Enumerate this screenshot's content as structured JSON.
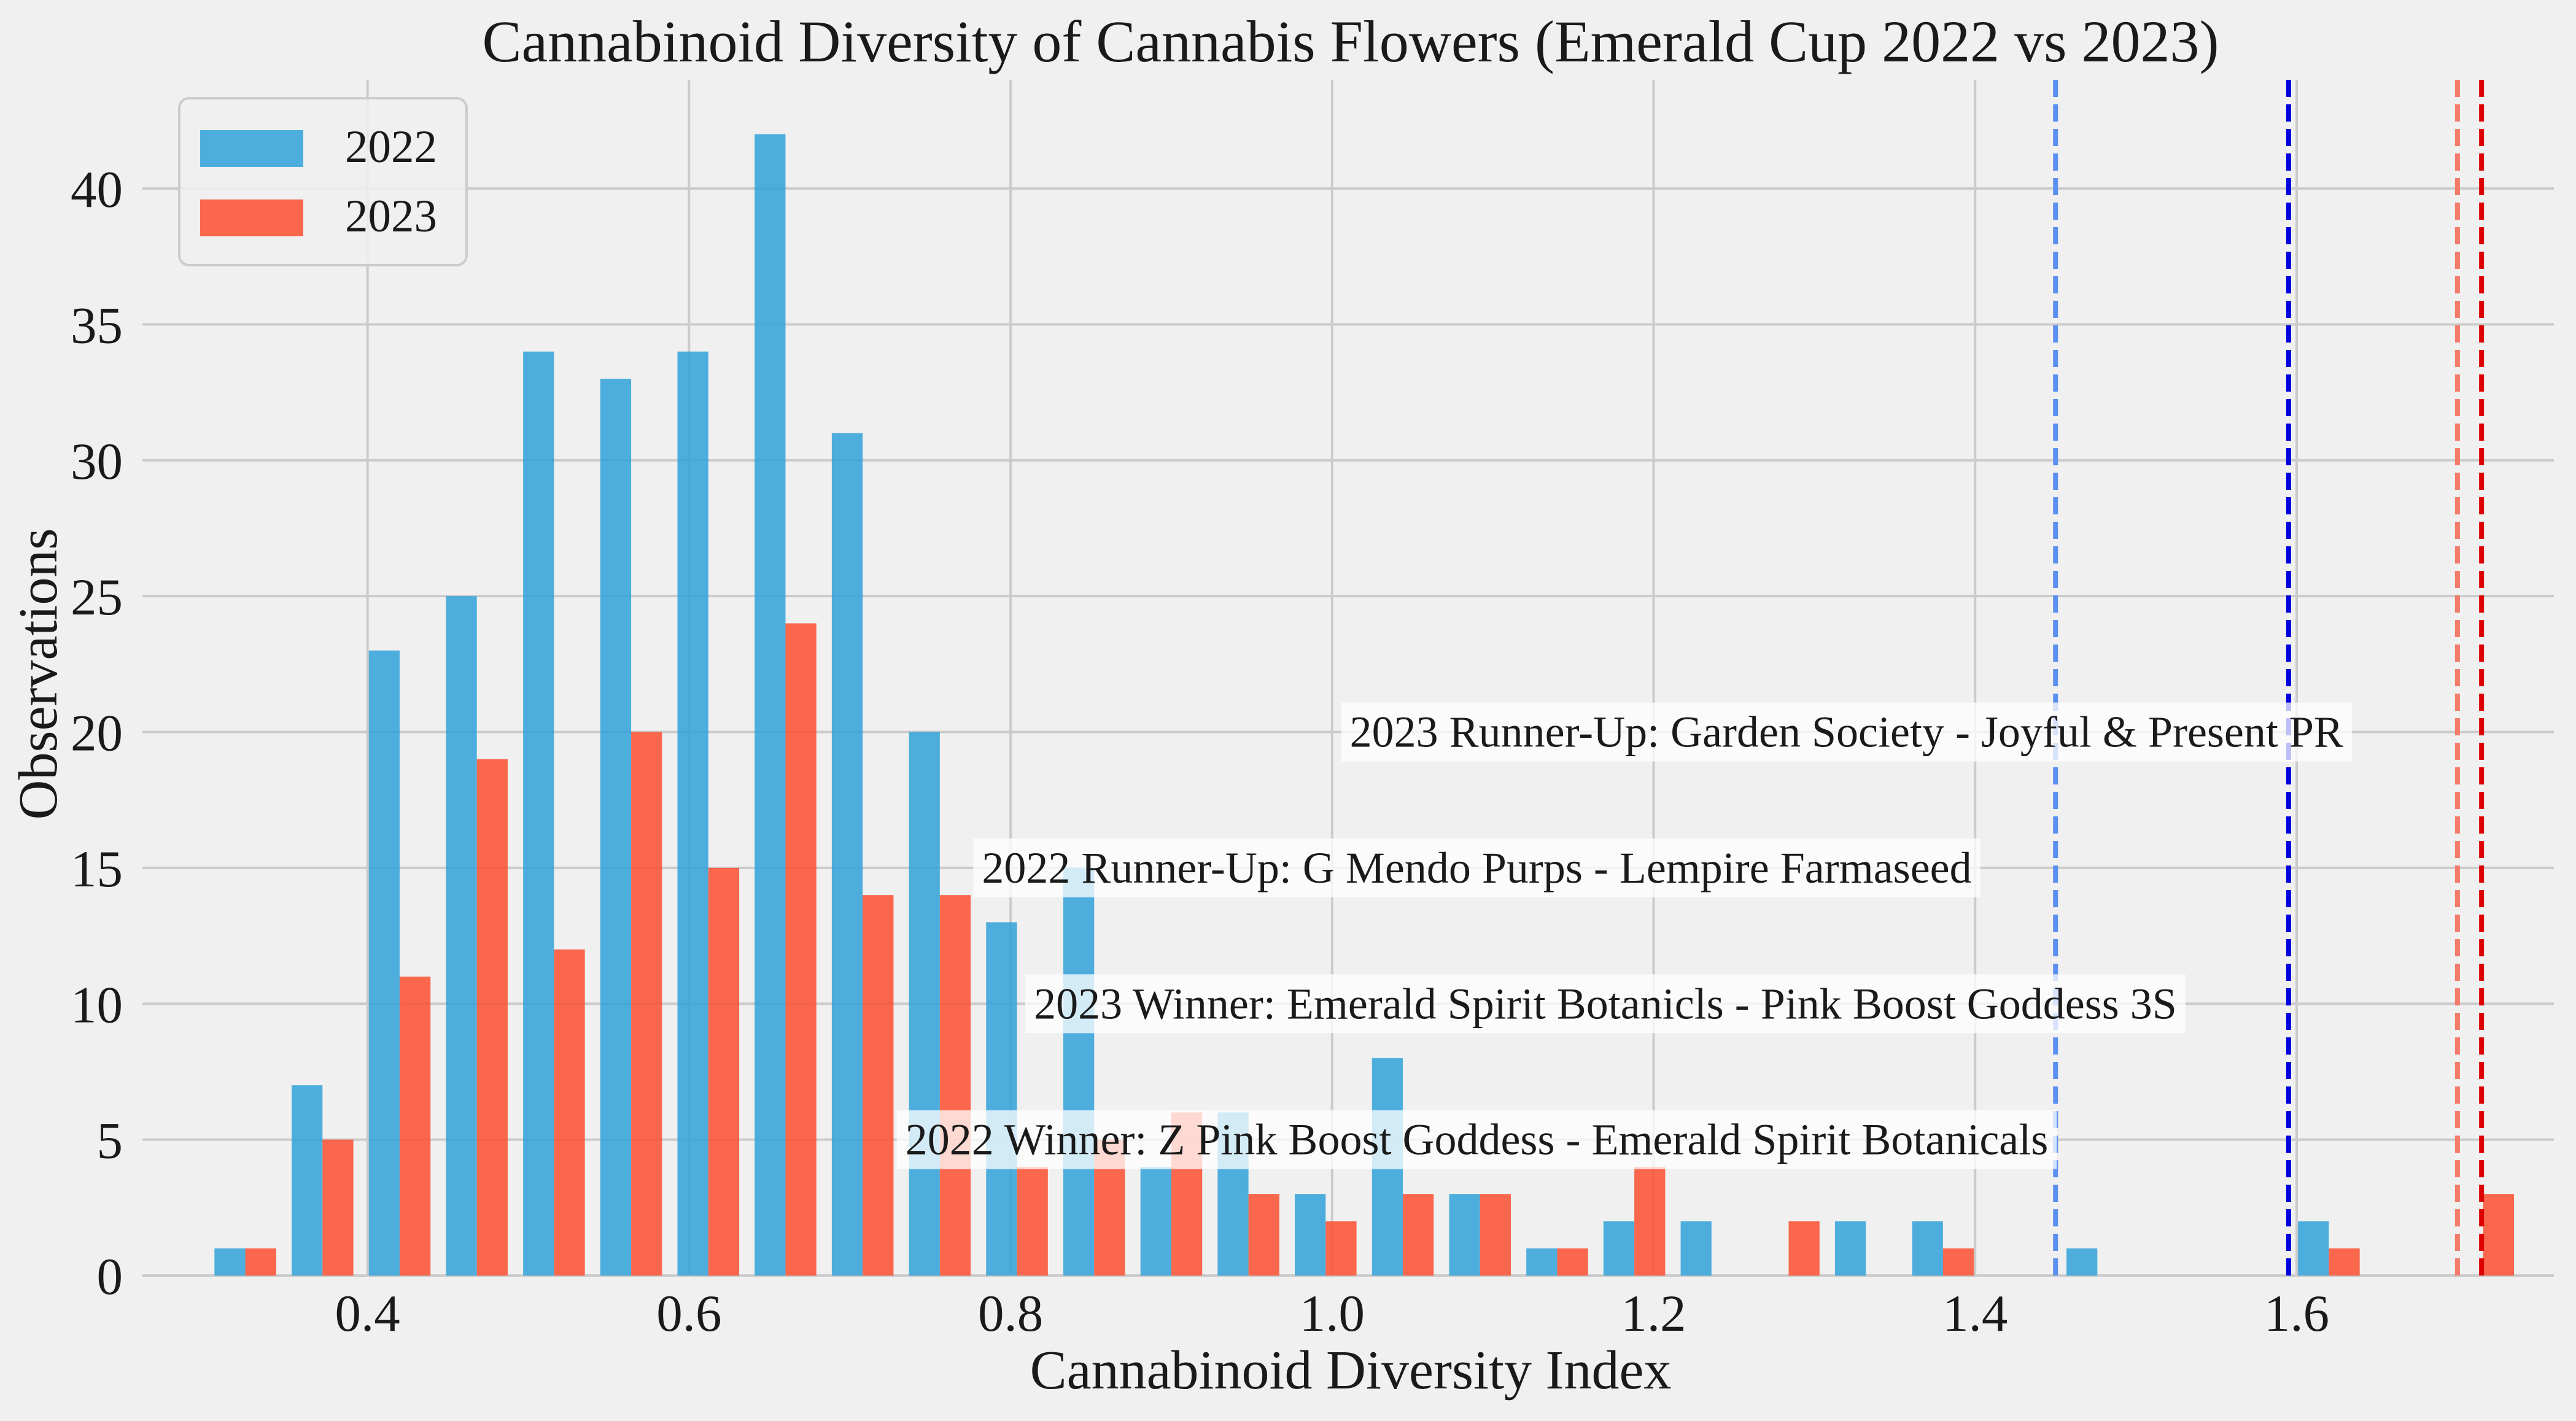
{
  "chart_data": {
    "type": "bar",
    "title": "Cannabinoid Diversity of Cannabis Flowers (Emerald Cup 2022 vs 2023)",
    "xlabel": "Cannabinoid Diversity Index",
    "ylabel": "Observations",
    "xlim": [
      0.26,
      1.76
    ],
    "ylim": [
      0,
      44
    ],
    "xticks": [
      0.4,
      0.6,
      0.8,
      1.0,
      1.2,
      1.4,
      1.6
    ],
    "xtick_labels": [
      "0.4",
      "0.6",
      "0.8",
      "1.0",
      "1.2",
      "1.4",
      "1.6"
    ],
    "yticks": [
      0,
      5,
      10,
      15,
      20,
      25,
      30,
      35,
      40
    ],
    "ytick_labels": [
      "0",
      "5",
      "10",
      "15",
      "20",
      "25",
      "30",
      "35",
      "40"
    ],
    "grid": true,
    "legend_position": "top-left",
    "bin_edges": [
      0.3,
      0.348,
      0.396,
      0.444,
      0.492,
      0.54,
      0.588,
      0.636,
      0.684,
      0.732,
      0.78,
      0.828,
      0.876,
      0.924,
      0.972,
      1.02,
      1.068,
      1.116,
      1.164,
      1.212,
      1.26,
      1.308,
      1.356,
      1.404,
      1.452,
      1.5,
      1.548,
      1.596,
      1.644,
      1.692,
      1.74
    ],
    "series": [
      {
        "name": "2022",
        "color": "#30a2da",
        "values": [
          1,
          7,
          23,
          25,
          34,
          33,
          34,
          42,
          31,
          20,
          13,
          15,
          4,
          6,
          3,
          8,
          3,
          1,
          2,
          2,
          0,
          2,
          2,
          0,
          1,
          0,
          0,
          2,
          0,
          0
        ]
      },
      {
        "name": "2023",
        "color": "#fc4f30",
        "values": [
          1,
          5,
          11,
          19,
          12,
          20,
          15,
          24,
          14,
          14,
          4,
          5,
          6,
          3,
          2,
          3,
          3,
          1,
          4,
          0,
          2,
          0,
          1,
          0,
          0,
          0,
          0,
          1,
          0,
          3
        ]
      }
    ],
    "reference_lines": [
      {
        "x": 1.45,
        "color": "#5b8ff0",
        "style": "dashed"
      },
      {
        "x": 1.595,
        "color": "#0000dd",
        "style": "dashed"
      },
      {
        "x": 1.7,
        "color": "#f47a6a",
        "style": "dashed"
      },
      {
        "x": 1.715,
        "color": "#dd0000",
        "style": "dashed"
      }
    ],
    "annotations": [
      {
        "text": "2023 Runner-Up: Garden Society - Joyful & Present PR",
        "x": 1.32,
        "y": 20
      },
      {
        "text": "2022 Runner-Up: G Mendo Purps - Lempire Farmaseed",
        "x": 1.09,
        "y": 15
      },
      {
        "text": "2023 Winner: Emerald Spirit Botanicls - Pink Boost Goddess 3S",
        "x": 1.17,
        "y": 10
      },
      {
        "text": "2022 Winner: Z Pink Boost Goddess - Emerald Spirit Botanicals",
        "x": 1.09,
        "y": 5
      }
    ]
  }
}
